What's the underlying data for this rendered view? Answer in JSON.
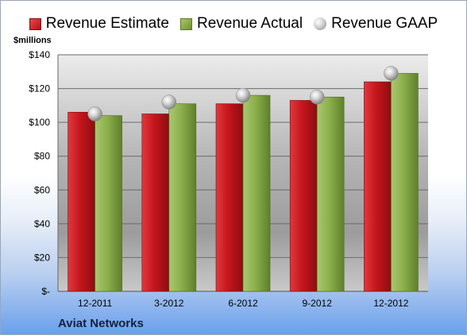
{
  "legend": {
    "estimate": "Revenue Estimate",
    "actual": "Revenue Actual",
    "gaap": "Revenue GAAP"
  },
  "units_label": "$millions",
  "company": "Aviat Networks",
  "colors": {
    "estimate": "#c4161c",
    "actual": "#8cb04b",
    "gaap": "#c8c8c8"
  },
  "chart_data": {
    "type": "bar",
    "categories": [
      "12-2011",
      "3-2012",
      "6-2012",
      "9-2012",
      "12-2012"
    ],
    "series": [
      {
        "name": "Revenue Estimate",
        "values": [
          106,
          105,
          111,
          113,
          124
        ]
      },
      {
        "name": "Revenue Actual",
        "values": [
          104,
          111,
          116,
          115,
          129
        ]
      },
      {
        "name": "Revenue GAAP",
        "values": [
          105,
          112,
          116,
          115,
          129
        ]
      }
    ],
    "yticks": [
      "$-",
      "$20",
      "$40",
      "$60",
      "$80",
      "$100",
      "$120",
      "$140"
    ],
    "ylim": [
      0,
      140
    ],
    "grid": true,
    "legend_position": "top"
  }
}
